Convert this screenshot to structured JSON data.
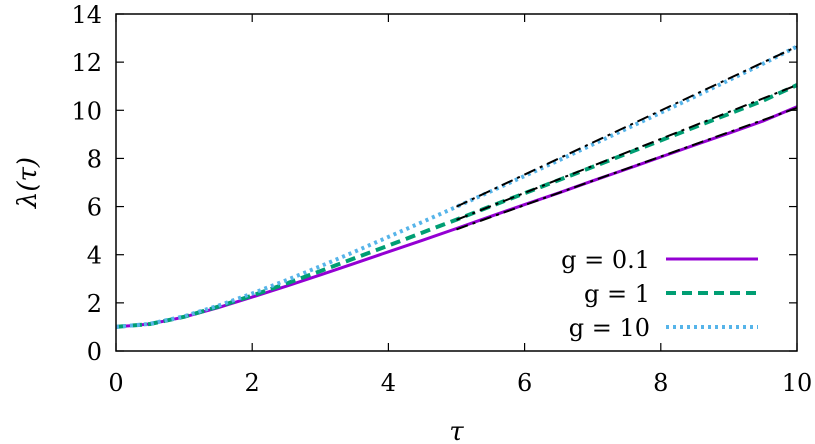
{
  "chart_data": {
    "type": "line",
    "title": "",
    "xlabel": "τ",
    "ylabel": "λ(τ)",
    "xlim": [
      0,
      10
    ],
    "ylim": [
      0,
      14
    ],
    "xticks": [
      0,
      2,
      4,
      6,
      8,
      10
    ],
    "yticks": [
      0,
      2,
      4,
      6,
      8,
      10,
      12,
      14
    ],
    "grid": false,
    "legend_position": "bottom-right",
    "series": [
      {
        "name": "g = 0.1",
        "color": "#9400d3",
        "style": "solid",
        "x": [
          0,
          0.5,
          1,
          1.5,
          2,
          2.5,
          3,
          3.5,
          4,
          4.5,
          5,
          5.5,
          6,
          6.5,
          7,
          7.5,
          8,
          8.5,
          9,
          9.5,
          10
        ],
        "y": [
          1.0,
          1.12,
          1.41,
          1.8,
          2.24,
          2.69,
          3.16,
          3.64,
          4.12,
          4.6,
          5.09,
          5.59,
          6.08,
          6.57,
          7.07,
          7.56,
          8.06,
          8.56,
          9.05,
          9.55,
          10.15
        ]
      },
      {
        "name": "g = 1",
        "color": "#009e73",
        "style": "dashed",
        "x": [
          0,
          0.5,
          1,
          1.5,
          2,
          2.5,
          3,
          3.5,
          4,
          4.5,
          5,
          5.5,
          6,
          6.5,
          7,
          7.5,
          8,
          8.5,
          9,
          9.5,
          10
        ],
        "y": [
          1.0,
          1.12,
          1.42,
          1.84,
          2.3,
          2.8,
          3.32,
          3.85,
          4.38,
          4.92,
          5.46,
          6.01,
          6.55,
          7.1,
          7.65,
          8.2,
          8.75,
          9.3,
          9.85,
          10.4,
          11.05
        ]
      },
      {
        "name": "g = 10",
        "color": "#56b4e9",
        "style": "dotted",
        "x": [
          0,
          0.5,
          1,
          1.5,
          2,
          2.5,
          3,
          3.5,
          4,
          4.5,
          5,
          5.5,
          6,
          6.5,
          7,
          7.5,
          8,
          8.5,
          9,
          9.5,
          10
        ],
        "y": [
          1.0,
          1.13,
          1.44,
          1.88,
          2.39,
          2.94,
          3.52,
          4.12,
          4.74,
          5.36,
          5.99,
          6.63,
          7.27,
          7.92,
          8.58,
          9.24,
          9.9,
          10.57,
          11.25,
          11.93,
          12.65
        ]
      }
    ],
    "fit_lines": [
      {
        "color": "#000000",
        "style": "dash-dot",
        "x": [
          5,
          10
        ],
        "y": [
          5.05,
          10.1
        ]
      },
      {
        "color": "#000000",
        "style": "dash-dot",
        "x": [
          5,
          10
        ],
        "y": [
          5.45,
          11.05
        ]
      },
      {
        "color": "#000000",
        "style": "dash-dot",
        "x": [
          5,
          10
        ],
        "y": [
          6.0,
          12.65
        ]
      }
    ]
  }
}
